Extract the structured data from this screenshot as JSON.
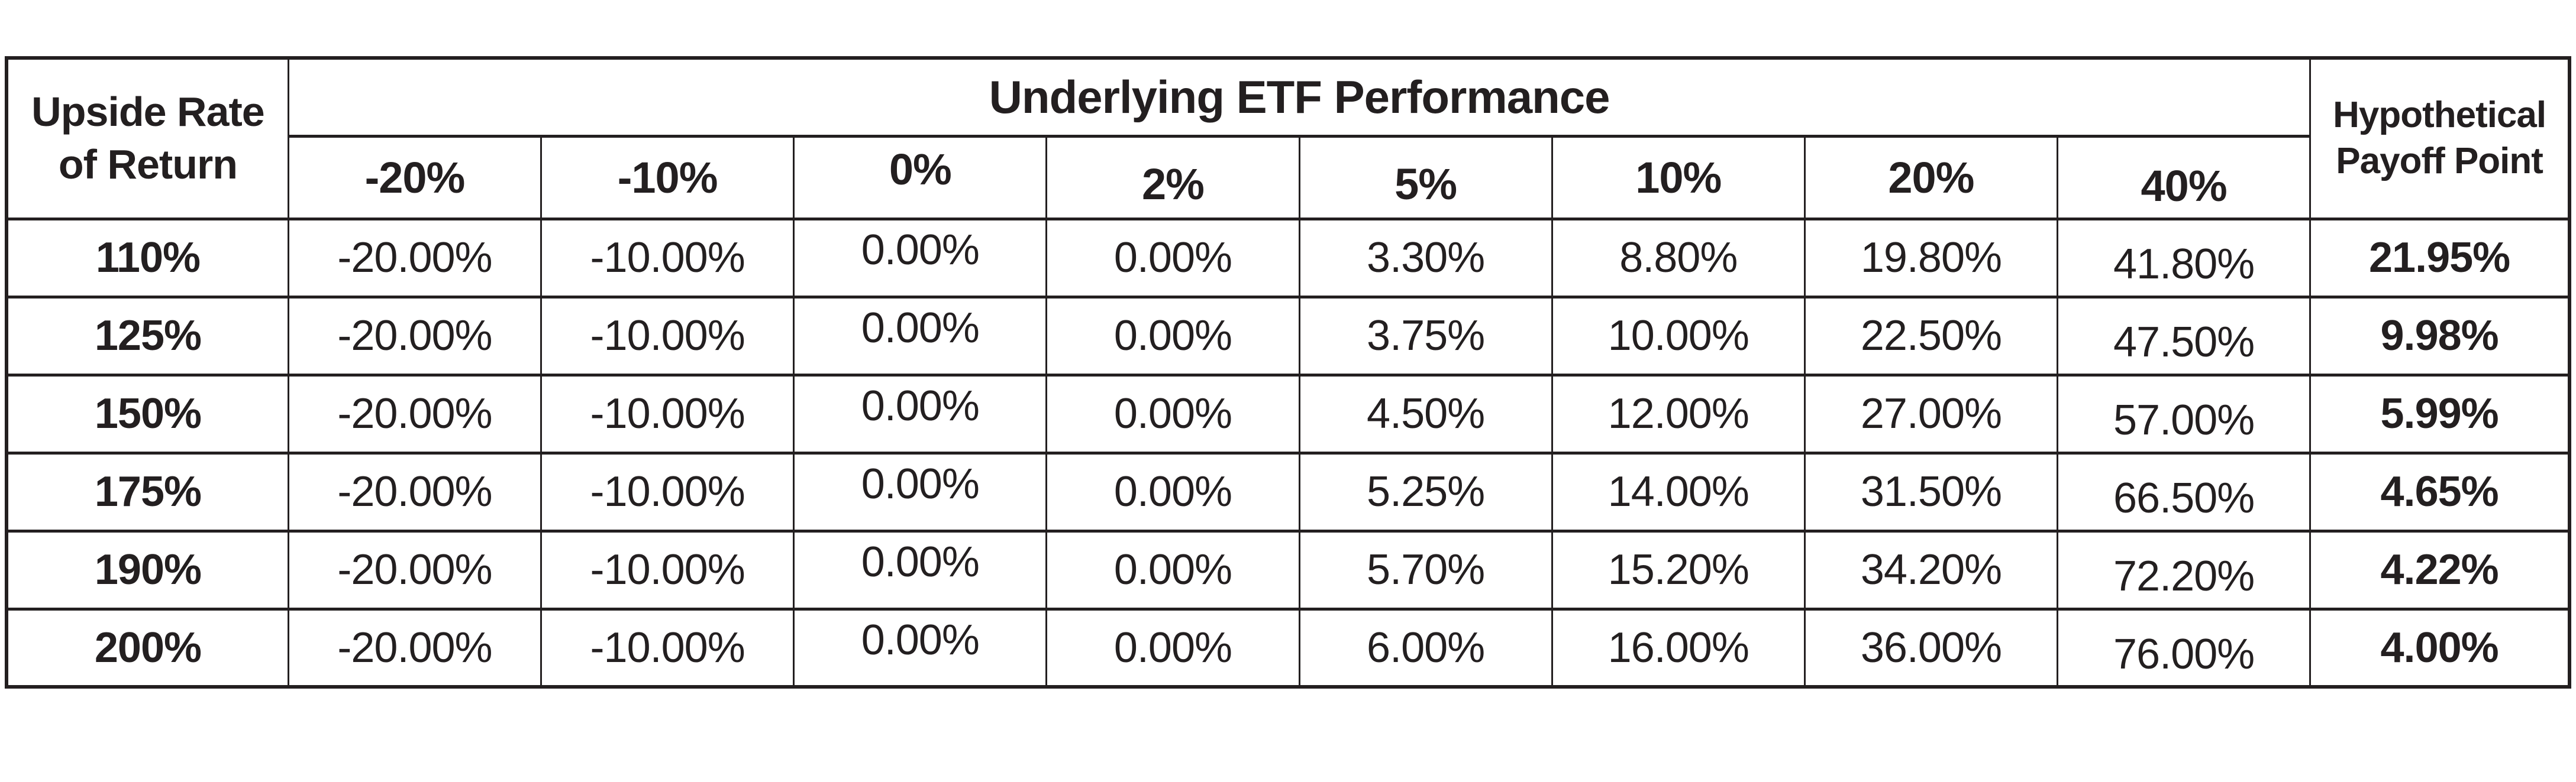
{
  "table": {
    "corner_label": "Upside Rate of Return",
    "performance_group_label": "Underlying ETF Performance",
    "payoff_label": "Hypothetical Payoff Point",
    "performance_levels": [
      "-20%",
      "-10%",
      "0%",
      "2%",
      "5%",
      "10%",
      "20%",
      "40%"
    ],
    "rows": [
      {
        "rate": "110%",
        "values": [
          "-20.00%",
          "-10.00%",
          "0.00%",
          "0.00%",
          "3.30%",
          "8.80%",
          "19.80%",
          "41.80%"
        ],
        "payoff": "21.95%"
      },
      {
        "rate": "125%",
        "values": [
          "-20.00%",
          "-10.00%",
          "0.00%",
          "0.00%",
          "3.75%",
          "10.00%",
          "22.50%",
          "47.50%"
        ],
        "payoff": "9.98%"
      },
      {
        "rate": "150%",
        "values": [
          "-20.00%",
          "-10.00%",
          "0.00%",
          "0.00%",
          "4.50%",
          "12.00%",
          "27.00%",
          "57.00%"
        ],
        "payoff": "5.99%"
      },
      {
        "rate": "175%",
        "values": [
          "-20.00%",
          "-10.00%",
          "0.00%",
          "0.00%",
          "5.25%",
          "14.00%",
          "31.50%",
          "66.50%"
        ],
        "payoff": "4.65%"
      },
      {
        "rate": "190%",
        "values": [
          "-20.00%",
          "-10.00%",
          "0.00%",
          "0.00%",
          "5.70%",
          "15.20%",
          "34.20%",
          "72.20%"
        ],
        "payoff": "4.22%"
      },
      {
        "rate": "200%",
        "values": [
          "-20.00%",
          "-10.00%",
          "0.00%",
          "0.00%",
          "6.00%",
          "16.00%",
          "36.00%",
          "76.00%"
        ],
        "payoff": "4.00%"
      }
    ],
    "colors": {
      "text": "#231f20",
      "border": "#231f20",
      "background": "#ffffff"
    }
  }
}
